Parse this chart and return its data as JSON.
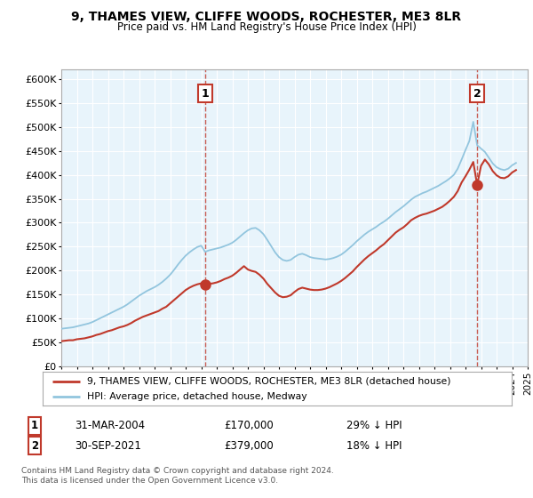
{
  "title": "9, THAMES VIEW, CLIFFE WOODS, ROCHESTER, ME3 8LR",
  "subtitle": "Price paid vs. HM Land Registry's House Price Index (HPI)",
  "legend_line1": "9, THAMES VIEW, CLIFFE WOODS, ROCHESTER, ME3 8LR (detached house)",
  "legend_line2": "HPI: Average price, detached house, Medway",
  "annotation1_date": "31-MAR-2004",
  "annotation1_price": "£170,000",
  "annotation1_hpi": "29% ↓ HPI",
  "annotation2_date": "30-SEP-2021",
  "annotation2_price": "£379,000",
  "annotation2_hpi": "18% ↓ HPI",
  "footnote": "Contains HM Land Registry data © Crown copyright and database right 2024.\nThis data is licensed under the Open Government Licence v3.0.",
  "hpi_color": "#92c5de",
  "price_color": "#c0392b",
  "marker_color": "#c0392b",
  "bg_color": "#e8f4fb",
  "ylim": [
    0,
    620000
  ],
  "yticks": [
    0,
    50000,
    100000,
    150000,
    200000,
    250000,
    300000,
    350000,
    400000,
    450000,
    500000,
    550000,
    600000
  ],
  "ytick_labels": [
    "£0",
    "£50K",
    "£100K",
    "£150K",
    "£200K",
    "£250K",
    "£300K",
    "£350K",
    "£400K",
    "£450K",
    "£500K",
    "£550K",
    "£600K"
  ],
  "hpi_x": [
    1995.0,
    1995.25,
    1995.5,
    1995.75,
    1996.0,
    1996.25,
    1996.5,
    1996.75,
    1997.0,
    1997.25,
    1997.5,
    1997.75,
    1998.0,
    1998.25,
    1998.5,
    1998.75,
    1999.0,
    1999.25,
    1999.5,
    1999.75,
    2000.0,
    2000.25,
    2000.5,
    2000.75,
    2001.0,
    2001.25,
    2001.5,
    2001.75,
    2002.0,
    2002.25,
    2002.5,
    2002.75,
    2003.0,
    2003.25,
    2003.5,
    2003.75,
    2004.0,
    2004.25,
    2004.5,
    2004.75,
    2005.0,
    2005.25,
    2005.5,
    2005.75,
    2006.0,
    2006.25,
    2006.5,
    2006.75,
    2007.0,
    2007.25,
    2007.5,
    2007.75,
    2008.0,
    2008.25,
    2008.5,
    2008.75,
    2009.0,
    2009.25,
    2009.5,
    2009.75,
    2010.0,
    2010.25,
    2010.5,
    2010.75,
    2011.0,
    2011.25,
    2011.5,
    2011.75,
    2012.0,
    2012.25,
    2012.5,
    2012.75,
    2013.0,
    2013.25,
    2013.5,
    2013.75,
    2014.0,
    2014.25,
    2014.5,
    2014.75,
    2015.0,
    2015.25,
    2015.5,
    2015.75,
    2016.0,
    2016.25,
    2016.5,
    2016.75,
    2017.0,
    2017.25,
    2017.5,
    2017.75,
    2018.0,
    2018.25,
    2018.5,
    2018.75,
    2019.0,
    2019.25,
    2019.5,
    2019.75,
    2020.0,
    2020.25,
    2020.5,
    2020.75,
    2021.0,
    2021.25,
    2021.5,
    2021.75,
    2022.0,
    2022.25,
    2022.5,
    2022.75,
    2023.0,
    2023.25,
    2023.5,
    2023.75,
    2024.0,
    2024.25
  ],
  "hpi_y": [
    78000,
    79000,
    80000,
    81000,
    83000,
    85000,
    87000,
    89000,
    92000,
    96000,
    100000,
    104000,
    108000,
    112000,
    116000,
    120000,
    124000,
    129000,
    135000,
    141000,
    147000,
    152000,
    157000,
    161000,
    165000,
    170000,
    176000,
    183000,
    191000,
    201000,
    212000,
    222000,
    231000,
    238000,
    244000,
    249000,
    252000,
    239000,
    242000,
    244000,
    246000,
    248000,
    251000,
    254000,
    258000,
    264000,
    271000,
    278000,
    284000,
    288000,
    289000,
    284000,
    276000,
    264000,
    251000,
    238000,
    228000,
    222000,
    220000,
    222000,
    228000,
    233000,
    235000,
    232000,
    228000,
    226000,
    225000,
    224000,
    223000,
    224000,
    226000,
    229000,
    233000,
    239000,
    246000,
    253000,
    261000,
    268000,
    275000,
    281000,
    286000,
    291000,
    297000,
    302000,
    308000,
    315000,
    322000,
    328000,
    334000,
    341000,
    348000,
    354000,
    358000,
    362000,
    365000,
    369000,
    373000,
    377000,
    382000,
    387000,
    393000,
    400000,
    413000,
    432000,
    452000,
    471000,
    511000,
    462000,
    455000,
    448000,
    436000,
    424000,
    416000,
    412000,
    410000,
    413000,
    420000,
    425000
  ],
  "red_y": [
    52000,
    53000,
    54000,
    54000,
    56000,
    57000,
    58000,
    60000,
    62000,
    65000,
    67000,
    70000,
    73000,
    75000,
    78000,
    81000,
    83000,
    86000,
    90000,
    95000,
    99000,
    103000,
    106000,
    109000,
    112000,
    115000,
    120000,
    124000,
    131000,
    138000,
    145000,
    152000,
    159000,
    164000,
    168000,
    171000,
    173000,
    170000,
    172000,
    173000,
    175000,
    178000,
    182000,
    185000,
    189000,
    195000,
    202000,
    209000,
    202000,
    199000,
    197000,
    191000,
    183000,
    172000,
    163000,
    154000,
    147000,
    144000,
    145000,
    148000,
    155000,
    161000,
    164000,
    162000,
    160000,
    159000,
    159000,
    160000,
    162000,
    165000,
    169000,
    173000,
    178000,
    184000,
    191000,
    198000,
    207000,
    215000,
    223000,
    230000,
    236000,
    242000,
    249000,
    255000,
    263000,
    271000,
    279000,
    285000,
    290000,
    297000,
    305000,
    310000,
    314000,
    317000,
    319000,
    322000,
    325000,
    329000,
    333000,
    339000,
    346000,
    354000,
    366000,
    384000,
    397000,
    411000,
    427000,
    379000,
    419000,
    432000,
    422000,
    408000,
    399000,
    394000,
    393000,
    397000,
    405000,
    410000
  ],
  "sale1_x": 2004.25,
  "sale1_y": 170000,
  "sale2_x": 2021.75,
  "sale2_y": 379000,
  "xmin": 1995.0,
  "xmax": 2025.0
}
